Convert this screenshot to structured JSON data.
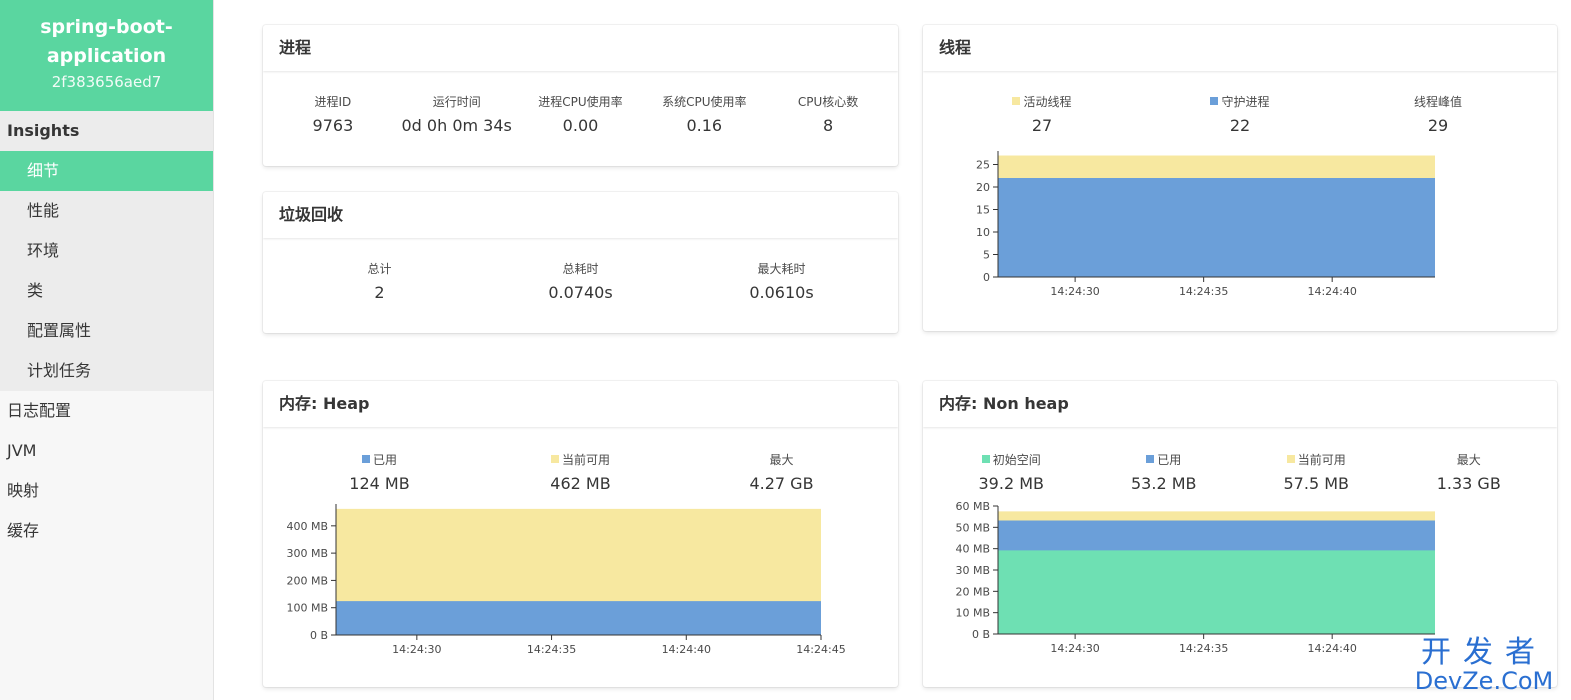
{
  "app": {
    "name": "spring-boot-application",
    "id": "2f383656aed7"
  },
  "nav": {
    "insights_title": "Insights",
    "insights_items": [
      "细节",
      "性能",
      "环境",
      "类",
      "配置属性",
      "计划任务"
    ],
    "top_items": [
      "日志配置",
      "JVM",
      "映射",
      "缓存"
    ]
  },
  "process": {
    "title": "进程",
    "stats": [
      {
        "label": "进程ID",
        "value": "9763"
      },
      {
        "label": "运行时间",
        "value": "0d 0h 0m 34s"
      },
      {
        "label": "进程CPU使用率",
        "value": "0.00"
      },
      {
        "label": "系统CPU使用率",
        "value": "0.16"
      },
      {
        "label": "CPU核心数",
        "value": "8"
      }
    ]
  },
  "gc": {
    "title": "垃圾回收",
    "stats": [
      {
        "label": "总计",
        "value": "2"
      },
      {
        "label": "总耗时",
        "value": "0.0740s"
      },
      {
        "label": "最大耗时",
        "value": "0.0610s"
      }
    ]
  },
  "threads": {
    "title": "线程",
    "stats": [
      {
        "label": "活动线程",
        "value": "27",
        "color": "#f7e8a0"
      },
      {
        "label": "守护进程",
        "value": "22",
        "color": "#6b9fd9"
      },
      {
        "label": "线程峰值",
        "value": "29"
      }
    ]
  },
  "heap": {
    "title": "内存: Heap",
    "stats": [
      {
        "label": "已用",
        "value": "124 MB",
        "color": "#6b9fd9"
      },
      {
        "label": "当前可用",
        "value": "462 MB",
        "color": "#f7e8a0"
      },
      {
        "label": "最大",
        "value": "4.27 GB"
      }
    ]
  },
  "nonheap": {
    "title": "内存: Non heap",
    "stats": [
      {
        "label": "初始空间",
        "value": "39.2 MB",
        "color": "#6ee0b3"
      },
      {
        "label": "已用",
        "value": "53.2 MB",
        "color": "#6b9fd9"
      },
      {
        "label": "当前可用",
        "value": "57.5 MB",
        "color": "#f7e8a0"
      },
      {
        "label": "最大",
        "value": "1.33 GB"
      }
    ]
  },
  "chart_data": [
    {
      "type": "area",
      "chart": "threads",
      "x_range": [
        "14:24:27",
        "14:24:44"
      ],
      "x_ticks": [
        "14:24:30",
        "14:24:35",
        "14:24:40"
      ],
      "y_ticks": [
        "0",
        "5",
        "10",
        "15",
        "20",
        "25"
      ],
      "ylim": [
        0,
        28
      ],
      "series": [
        {
          "name": "守护进程",
          "color": "#6b9fd9",
          "values": [
            22,
            22
          ]
        },
        {
          "name": "活动线程",
          "color": "#f7e8a0",
          "values": [
            27,
            27
          ]
        }
      ]
    },
    {
      "type": "area",
      "chart": "heap",
      "x_range": [
        "14:24:27",
        "14:24:45"
      ],
      "x_ticks": [
        "14:24:30",
        "14:24:35",
        "14:24:40",
        "14:24:45"
      ],
      "y_ticks": [
        "0 B",
        "100 MB",
        "200 MB",
        "300 MB",
        "400 MB"
      ],
      "ylim": [
        0,
        480
      ],
      "series": [
        {
          "name": "已用",
          "color": "#6b9fd9",
          "values": [
            124,
            124
          ]
        },
        {
          "name": "当前可用",
          "color": "#f7e8a0",
          "values": [
            462,
            462
          ]
        }
      ]
    },
    {
      "type": "area",
      "chart": "nonheap",
      "x_range": [
        "14:24:27",
        "14:24:44"
      ],
      "x_ticks": [
        "14:24:30",
        "14:24:35",
        "14:24:40"
      ],
      "y_ticks": [
        "0 B",
        "10 MB",
        "20 MB",
        "30 MB",
        "40 MB",
        "50 MB",
        "60 MB"
      ],
      "ylim": [
        0,
        60
      ],
      "series": [
        {
          "name": "初始空间",
          "color": "#6ee0b3",
          "values": [
            39.2,
            39.2
          ]
        },
        {
          "name": "已用",
          "color": "#6b9fd9",
          "values": [
            53.2,
            53.2
          ]
        },
        {
          "name": "当前可用",
          "color": "#f7e8a0",
          "values": [
            57.5,
            57.5
          ]
        }
      ]
    }
  ],
  "watermark": {
    "cn": "开发者",
    "en": "DevZe.CoM"
  }
}
